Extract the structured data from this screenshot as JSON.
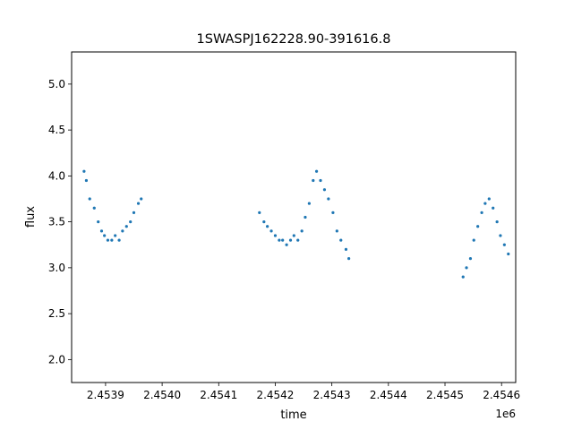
{
  "chart_data": {
    "type": "scatter",
    "title": "1SWASPJ162228.90-391616.8",
    "xlabel": "time",
    "ylabel": "flux",
    "x_offset_label": "1e6",
    "xlim": [
      2453840,
      2454625
    ],
    "ylim": [
      1.75,
      5.35
    ],
    "x_ticks": [
      2453900,
      2454000,
      2454100,
      2454200,
      2454300,
      2454400,
      2454500,
      2454600
    ],
    "x_tick_labels": [
      "2.4539",
      "2.4540",
      "2.4541",
      "2.4542",
      "2.4543",
      "2.4544",
      "2.4545",
      "2.4546"
    ],
    "y_ticks": [
      2.0,
      2.5,
      3.0,
      3.5,
      4.0,
      4.5,
      5.0
    ],
    "y_tick_labels": [
      "2.0",
      "2.5",
      "3.0",
      "3.5",
      "4.0",
      "4.5",
      "5.0"
    ],
    "grid": false,
    "marker_color": "#1f77b4",
    "series": [
      {
        "x": [
          2453862,
          2453866,
          2453872,
          2453880,
          2453887,
          2453893,
          2453898,
          2453904,
          2453911,
          2453917,
          2453924,
          2453930,
          2453937,
          2453944,
          2453950,
          2453958,
          2453963,
          2454172,
          2454180,
          2454186,
          2454193,
          2454200,
          2454207,
          2454213,
          2454220,
          2454227,
          2454233,
          2454240,
          2454247,
          2454253,
          2454260,
          2454267,
          2454273,
          2454280,
          2454287,
          2454294,
          2454302,
          2454309,
          2454316,
          2454325,
          2454330,
          2454532,
          2454538,
          2454545,
          2454551,
          2454558,
          2454565,
          2454571,
          2454578,
          2454585,
          2454592,
          2454598,
          2454605,
          2454612
        ],
        "y": [
          4.05,
          3.95,
          3.75,
          3.65,
          3.5,
          3.4,
          3.35,
          3.3,
          3.3,
          3.35,
          3.3,
          3.4,
          3.45,
          3.5,
          3.6,
          3.7,
          3.75,
          3.6,
          3.5,
          3.45,
          3.4,
          3.35,
          3.3,
          3.3,
          3.25,
          3.3,
          3.35,
          3.3,
          3.4,
          3.55,
          3.7,
          3.95,
          4.05,
          3.95,
          3.85,
          3.75,
          3.6,
          3.4,
          3.3,
          3.2,
          3.1,
          2.9,
          3.0,
          3.1,
          3.3,
          3.45,
          3.6,
          3.7,
          3.75,
          3.65,
          3.5,
          3.35,
          3.25,
          3.15
        ]
      }
    ]
  }
}
